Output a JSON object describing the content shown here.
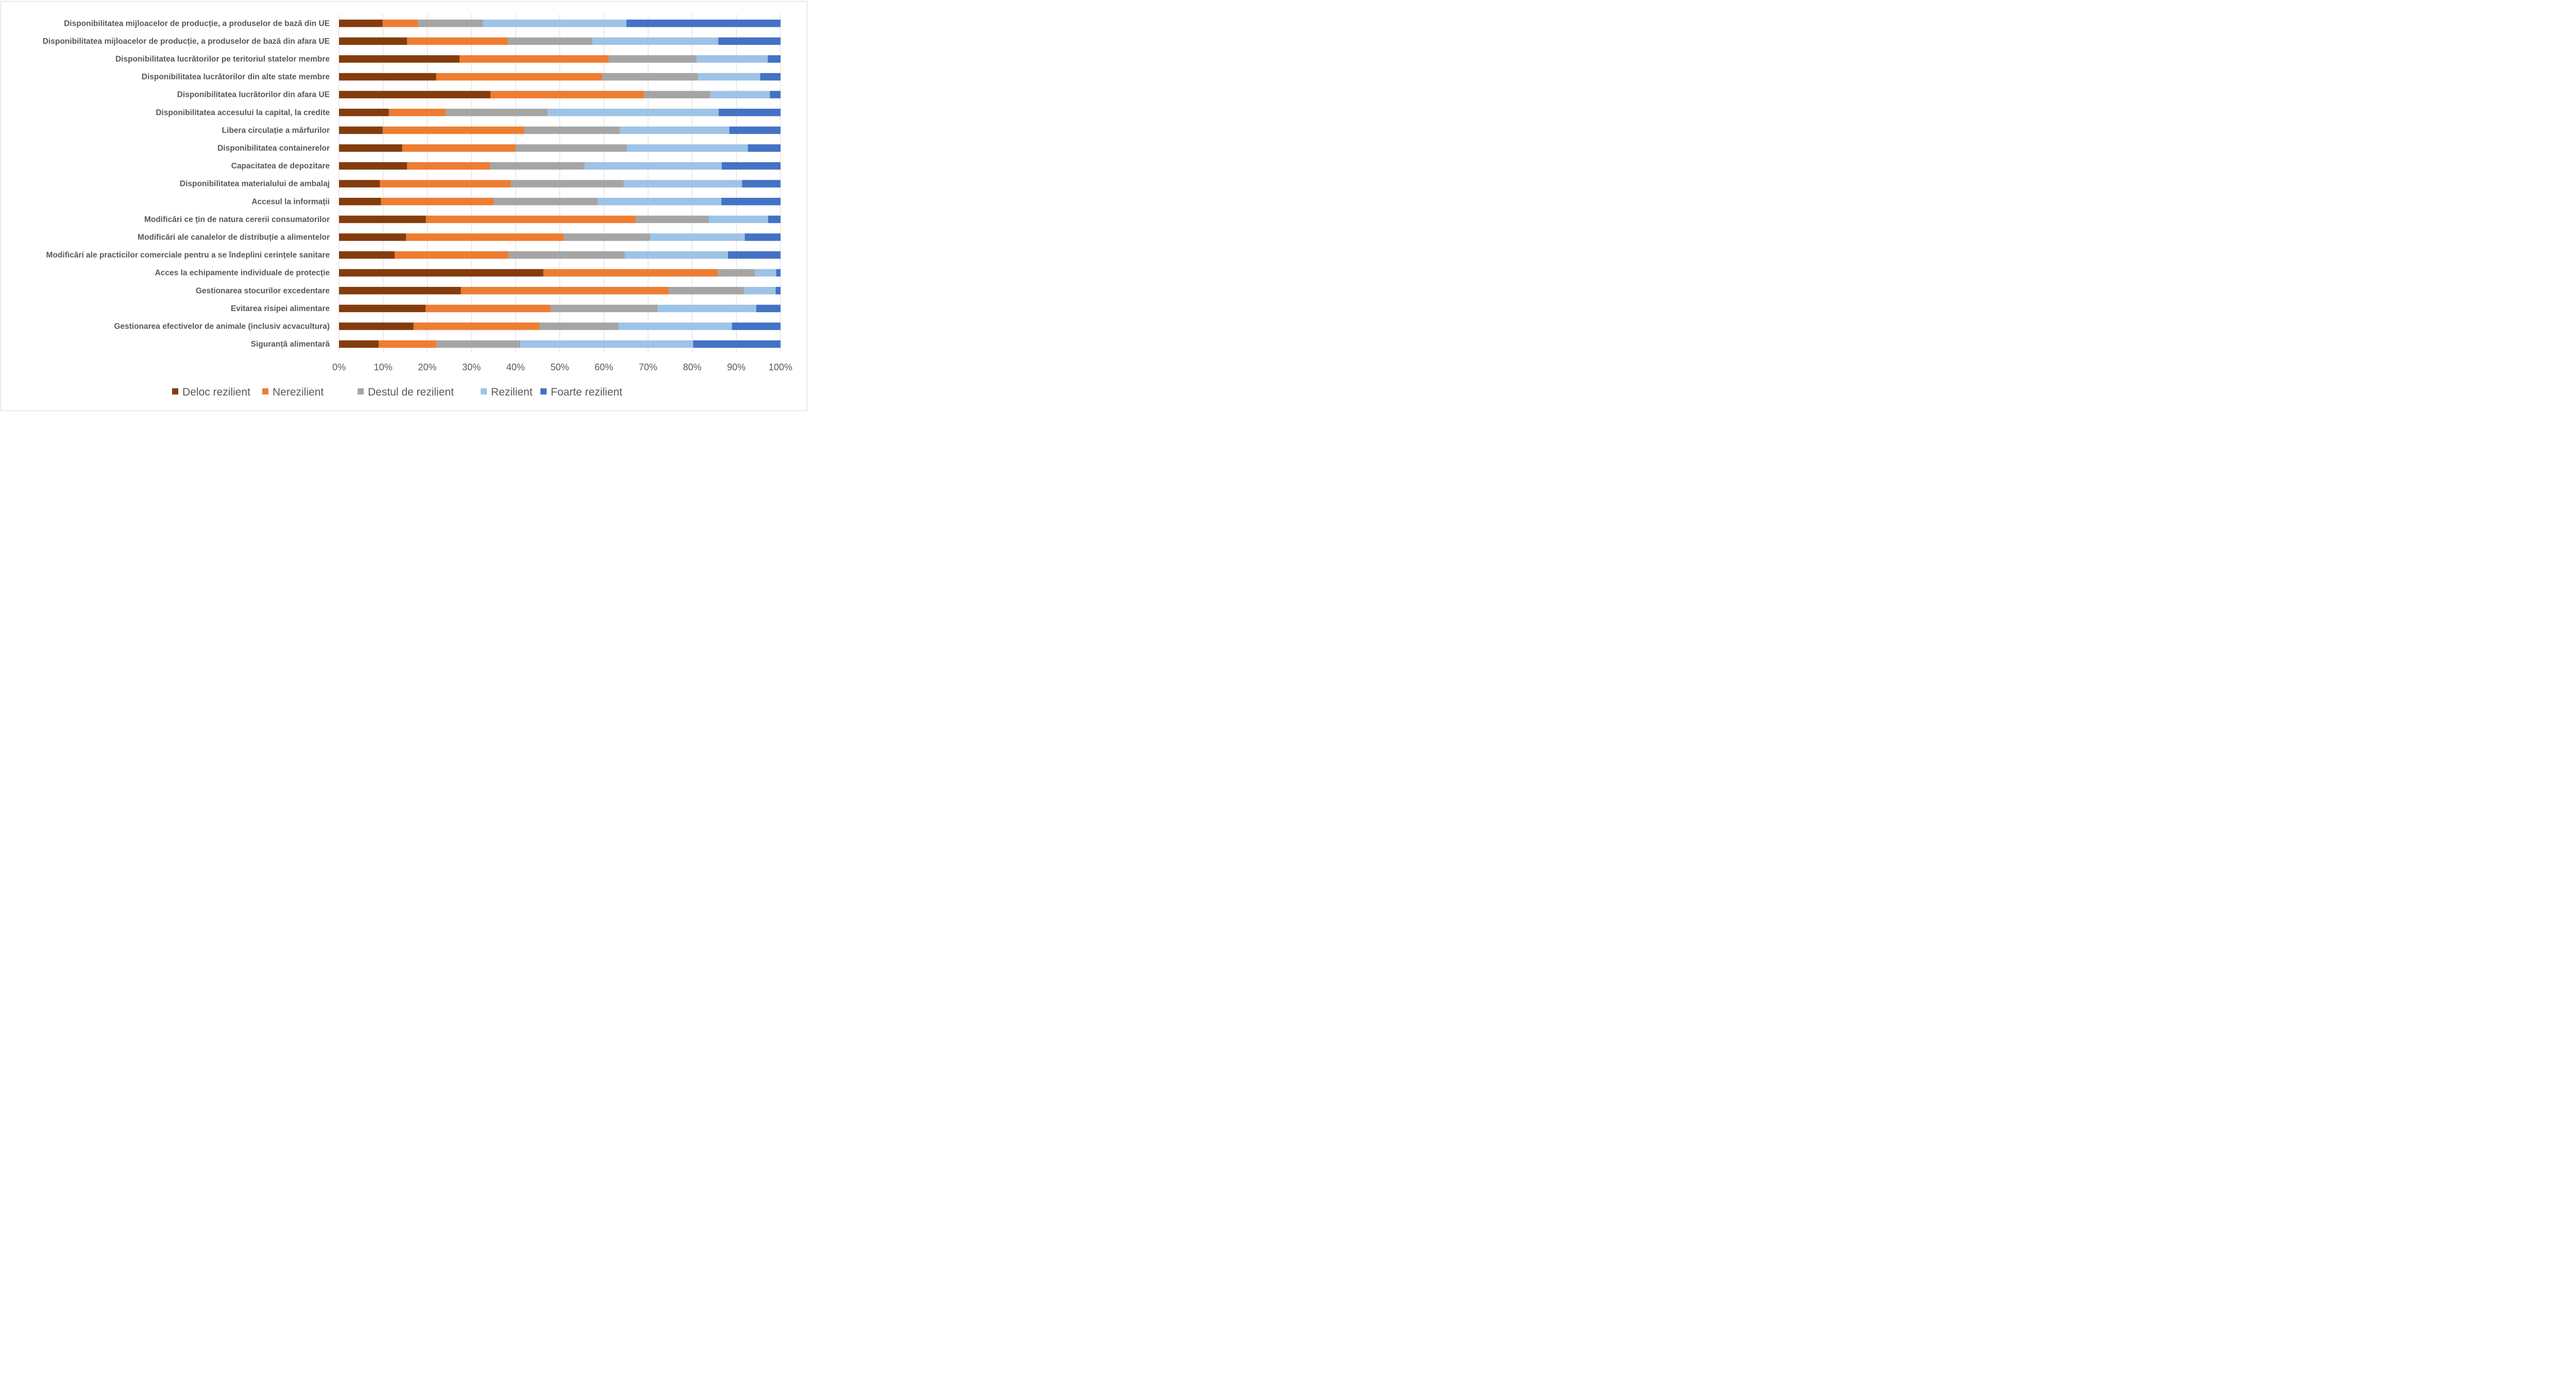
{
  "chart_data": {
    "type": "bar",
    "orientation": "horizontal",
    "stacked": "percent",
    "title": "",
    "xlabel": "",
    "ylabel": "",
    "xlim": [
      0,
      100
    ],
    "grid": true,
    "legend_position": "bottom",
    "x_ticks": [
      "0%",
      "10%",
      "20%",
      "30%",
      "40%",
      "50%",
      "60%",
      "70%",
      "80%",
      "90%",
      "100%"
    ],
    "categories": [
      "Disponibilitatea mijloacelor de producție, a produselor de bază din UE",
      "Disponibilitatea mijloacelor de producție, a produselor de bază din afara UE",
      "Disponibilitatea lucrătorilor pe teritoriul statelor membre",
      "Disponibilitatea lucrătorilor din alte state membre",
      "Disponibilitatea lucrătorilor din afara UE",
      "Disponibilitatea accesului la capital, la credite",
      "Libera circulație a mărfurilor",
      "Disponibilitatea containerelor",
      "Capacitatea de depozitare",
      "Disponibilitatea materialului de ambalaj",
      "Accesul la informații",
      "Modificări ce țin de natura cererii consumatorilor",
      "Modificări ale canalelor de distribuție a alimentelor",
      "Modificări ale practicilor comerciale pentru a se îndeplini cerințele sanitare",
      "Acces la echipamente individuale de protecție",
      "Gestionarea stocurilor excedentare",
      "Evitarea risipei alimentare",
      "Gestionarea efectivelor de animale (inclusiv acvacultura)",
      "Siguranță alimentară"
    ],
    "series": [
      {
        "name": "Deloc rezilient",
        "color": "#843C0C",
        "values": [
          9.9,
          15.4,
          27.3,
          22.0,
          34.3,
          11.3,
          9.9,
          14.3,
          15.4,
          9.3,
          9.5,
          19.7,
          15.2,
          12.6,
          46.3,
          27.6,
          19.6,
          16.9,
          9.0
        ]
      },
      {
        "name": "Nerezilient",
        "color": "#ED7D31",
        "values": [
          8.0,
          22.8,
          33.8,
          37.6,
          34.8,
          12.9,
          32.1,
          25.7,
          18.8,
          29.6,
          25.5,
          47.5,
          35.7,
          25.8,
          39.5,
          47.1,
          28.3,
          28.5,
          13.1
        ]
      },
      {
        "name": "Destul de rezilient",
        "color": "#A5A5A5",
        "values": [
          14.7,
          19.2,
          19.9,
          21.7,
          15.0,
          23.0,
          21.6,
          25.2,
          21.4,
          25.6,
          23.6,
          16.6,
          19.6,
          26.3,
          8.4,
          17.1,
          24.3,
          17.9,
          19.0
        ]
      },
      {
        "name": "Rezilient",
        "color": "#9DC3E6",
        "values": [
          32.5,
          28.5,
          16.1,
          14.1,
          13.5,
          38.8,
          24.8,
          27.4,
          31.1,
          26.8,
          28.0,
          13.4,
          21.4,
          23.4,
          4.8,
          7.1,
          22.3,
          25.7,
          39.1
        ]
      },
      {
        "name": "Foarte rezilient",
        "color": "#4472C4",
        "values": [
          34.9,
          14.1,
          2.9,
          4.6,
          2.4,
          14.0,
          11.6,
          7.4,
          13.3,
          8.7,
          13.4,
          2.8,
          8.1,
          11.9,
          1.0,
          1.1,
          5.5,
          11.0,
          19.8
        ]
      }
    ]
  }
}
